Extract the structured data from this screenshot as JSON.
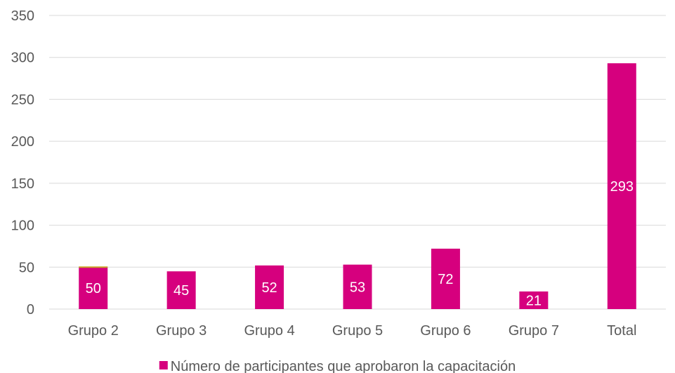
{
  "chart_data": {
    "type": "bar",
    "categories": [
      "Grupo 2",
      "Grupo 3",
      "Grupo 4",
      "Grupo 5",
      "Grupo 6",
      "Grupo 7",
      "Total"
    ],
    "series": [
      {
        "name": "Número de participantes que aprobaron la capacitación",
        "values": [
          50,
          45,
          52,
          53,
          72,
          21,
          293
        ],
        "color": "#d6007e"
      }
    ],
    "y_ticks": [
      "0",
      "50",
      "100",
      "150",
      "200",
      "250",
      "300",
      "350"
    ],
    "ylim": [
      0,
      350
    ],
    "grid": true,
    "legend_position": "bottom",
    "colors": {
      "bar": "#d6007e",
      "grid": "#d9d9d9",
      "axis_text": "#595959",
      "label_text": "#ffffff",
      "thin_accent": "#c9a227"
    }
  }
}
